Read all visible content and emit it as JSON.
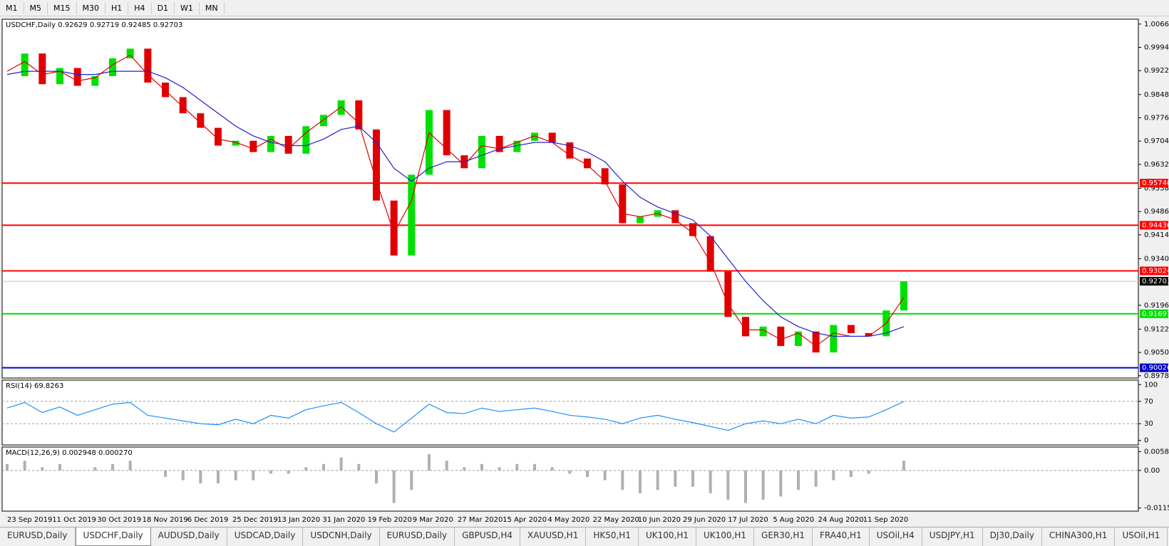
{
  "toolbar": [
    "M1",
    "M5",
    "M15",
    "M30",
    "H1",
    "H4",
    "D1",
    "W1",
    "MN"
  ],
  "tabs": [
    "EURUSD,Daily",
    "USDCHF,Daily",
    "AUDUSD,Daily",
    "USDCAD,Daily",
    "USDCNH,Daily",
    "EURUSD,Daily",
    "GBPUSD,H4",
    "XAUUSD,H1",
    "HK50,H1",
    "UK100,H1",
    "UK100,H1",
    "GER30,H1",
    "FRA40,H1",
    "USOil,H4",
    "USDJPY,H1",
    "DJ30,Daily",
    "CHINA300,H1",
    "USOil,H1"
  ],
  "active_tab": 1,
  "chart_data": [
    {
      "type": "candlestick",
      "title": "USDCHF,Daily  0.92629 0.92719 0.92485 0.92703",
      "ylim": [
        0.8971,
        1.0081
      ],
      "yticks": [
        {
          "value": 1.0066,
          "label": "1.00660"
        },
        {
          "value": 0.9994,
          "label": "0.99940"
        },
        {
          "value": 0.9922,
          "label": "0.99220"
        },
        {
          "value": 0.9848,
          "label": "0.98480"
        },
        {
          "value": 0.9776,
          "label": "0.97760"
        },
        {
          "value": 0.9704,
          "label": "0.97040"
        },
        {
          "value": 0.9632,
          "label": "0.96320"
        },
        {
          "value": 0.9558,
          "label": "0.95580"
        },
        {
          "value": 0.9486,
          "label": "0.94860"
        },
        {
          "value": 0.9414,
          "label": "0.94140"
        },
        {
          "value": 0.934,
          "label": "0.93400"
        },
        {
          "value": 0.9196,
          "label": "0.91960"
        },
        {
          "value": 0.9122,
          "label": "0.91220"
        },
        {
          "value": 0.905,
          "label": "0.90500"
        },
        {
          "value": 0.8978,
          "label": "0.89780"
        }
      ],
      "date_labels": [
        "23 Sep 2019",
        "11 Oct 2019",
        "30 Oct 2019",
        "18 Nov 2019",
        "6 Dec 2019",
        "25 Dec 2019",
        "13 Jan 2020",
        "31 Jan 2020",
        "19 Feb 2020",
        "9 Mar 2020",
        "27 Mar 2020",
        "15 Apr 2020",
        "4 May 2020",
        "22 May 2020",
        "10 Jun 2020",
        "29 Jun 2020",
        "17 Jul 2020",
        "5 Aug 2020",
        "24 Aug 2020",
        "11 Sep 2020"
      ],
      "closes": [
        0.9905,
        0.9975,
        0.988,
        0.993,
        0.9875,
        0.9905,
        0.996,
        0.999,
        0.9885,
        0.984,
        0.979,
        0.9745,
        0.969,
        0.9705,
        0.967,
        0.972,
        0.9665,
        0.975,
        0.9785,
        0.983,
        0.974,
        0.952,
        0.935,
        0.96,
        0.98,
        0.966,
        0.962,
        0.972,
        0.967,
        0.9705,
        0.973,
        0.97,
        0.965,
        0.962,
        0.957,
        0.945,
        0.947,
        0.949,
        0.945,
        0.941,
        0.93,
        0.916,
        0.91,
        0.913,
        0.907,
        0.9115,
        0.905,
        0.9135,
        0.911,
        0.91,
        0.918,
        0.927
      ],
      "up_color": "#00e000",
      "down_color": "#e00000",
      "series": [
        {
          "color": "#e00000",
          "values": [
            0.992,
            0.995,
            0.991,
            0.992,
            0.989,
            0.99,
            0.994,
            0.997,
            0.991,
            0.986,
            0.981,
            0.976,
            0.971,
            0.97,
            0.968,
            0.971,
            0.968,
            0.973,
            0.977,
            0.981,
            0.976,
            0.958,
            0.942,
            0.952,
            0.973,
            0.968,
            0.963,
            0.969,
            0.968,
            0.97,
            0.972,
            0.97,
            0.966,
            0.963,
            0.958,
            0.948,
            0.947,
            0.948,
            0.946,
            0.942,
            0.933,
            0.92,
            0.912,
            0.912,
            0.909,
            0.911,
            0.907,
            0.911,
            0.91,
            0.91,
            0.914,
            0.922
          ]
        },
        {
          "color": "#2020d0",
          "values": [
            0.991,
            0.992,
            0.992,
            0.992,
            0.991,
            0.991,
            0.992,
            0.992,
            0.992,
            0.99,
            0.987,
            0.983,
            0.979,
            0.975,
            0.972,
            0.97,
            0.969,
            0.969,
            0.971,
            0.974,
            0.975,
            0.97,
            0.962,
            0.958,
            0.962,
            0.964,
            0.964,
            0.966,
            0.968,
            0.969,
            0.97,
            0.97,
            0.969,
            0.967,
            0.964,
            0.958,
            0.953,
            0.95,
            0.948,
            0.946,
            0.941,
            0.934,
            0.927,
            0.921,
            0.916,
            0.913,
            0.911,
            0.91,
            0.91,
            0.91,
            0.911,
            0.913
          ]
        }
      ],
      "levels": [
        {
          "value": 0.9574,
          "label": "0.95740",
          "color": "#ff0000"
        },
        {
          "value": 0.94436,
          "label": "0.94436",
          "color": "#ff0000"
        },
        {
          "value": 0.93024,
          "label": "0.93024",
          "color": "#ff0000"
        },
        {
          "value": 0.91697,
          "label": "0.91697",
          "color": "#00dd00"
        },
        {
          "value": 0.90026,
          "label": "0.90026",
          "color": "#0000cc"
        }
      ],
      "current_price": {
        "value": 0.92703,
        "label": "0.92703"
      }
    },
    {
      "type": "line",
      "title": "RSI(14) 69.8263",
      "ylim": [
        -8,
        108
      ],
      "yticks": [
        100,
        70,
        30,
        0
      ],
      "color": "#1e90ff",
      "values": [
        58,
        68,
        50,
        60,
        45,
        55,
        65,
        68,
        45,
        40,
        35,
        30,
        28,
        38,
        30,
        45,
        40,
        55,
        62,
        68,
        50,
        30,
        15,
        40,
        65,
        50,
        48,
        58,
        52,
        55,
        58,
        52,
        45,
        42,
        38,
        30,
        40,
        45,
        38,
        32,
        25,
        18,
        30,
        35,
        30,
        38,
        30,
        45,
        40,
        42,
        55,
        69.8
      ]
    },
    {
      "type": "bar",
      "title": "MACD(12,26,9) 0.002948 0.000270",
      "ylim": [
        -0.0125,
        0.0072
      ],
      "yticks": [
        0.005818,
        {
          "value": 0,
          "label": "0.00"
        },
        -0.011514
      ],
      "color": "#b0b0b0",
      "values": [
        0.002,
        0.003,
        0.001,
        0.002,
        0,
        0.001,
        0.002,
        0.003,
        0,
        -0.002,
        -0.003,
        -0.004,
        -0.004,
        -0.003,
        -0.003,
        -0.001,
        -0.001,
        0.001,
        0.002,
        0.004,
        0.002,
        -0.004,
        -0.01,
        -0.006,
        0.005,
        0.003,
        0.001,
        0.002,
        0.001,
        0.002,
        0.002,
        0.001,
        -0.001,
        -0.002,
        -0.003,
        -0.006,
        -0.007,
        -0.006,
        -0.005,
        -0.005,
        -0.007,
        -0.009,
        -0.01,
        -0.009,
        -0.008,
        -0.006,
        -0.005,
        -0.003,
        -0.002,
        -0.001,
        0,
        0.003
      ]
    }
  ]
}
